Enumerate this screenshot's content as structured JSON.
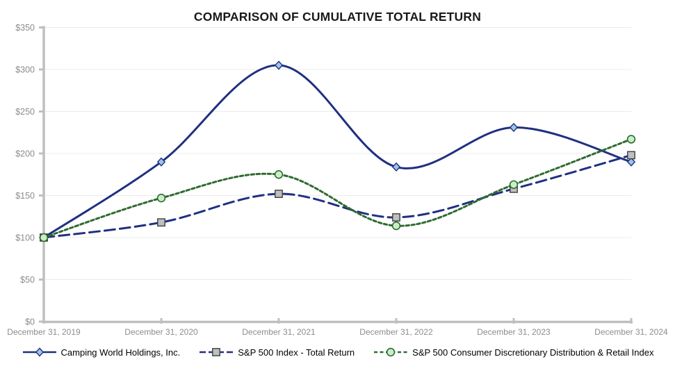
{
  "chart_data": {
    "type": "line",
    "title": "COMPARISON OF CUMULATIVE TOTAL RETURN",
    "categories": [
      "December 31, 2019",
      "December 31, 2020",
      "December 31, 2021",
      "December 31, 2022",
      "December 31, 2023",
      "December 31, 2024"
    ],
    "series": [
      {
        "name": "Camping World Holdings, Inc.",
        "values": [
          100,
          190,
          305,
          184,
          231,
          190
        ],
        "line_color": "#203081",
        "line_style": "solid",
        "marker": "diamond",
        "marker_fill": "#9DC3E6",
        "marker_stroke": "#203081"
      },
      {
        "name": "S&P 500 Index - Total Return",
        "values": [
          100,
          118,
          152,
          124,
          158,
          198
        ],
        "line_color": "#203081",
        "line_style": "long-dash",
        "marker": "square",
        "marker_fill": "#BFBFBF",
        "marker_stroke": "#3F3F3F"
      },
      {
        "name": "S&P 500 Consumer Discretionary Distribution & Retail Index",
        "values": [
          100,
          147,
          175,
          114,
          163,
          217
        ],
        "line_color": "#2E6B30",
        "line_style": "dot",
        "marker": "circle",
        "marker_fill": "#C9EFC9",
        "marker_stroke": "#2E6B30"
      }
    ],
    "y_axis": {
      "min": 0,
      "max": 350,
      "step": 50,
      "tick_prefix": "$"
    },
    "x_axis_labels_visible": true,
    "grid": true,
    "legend_position": "bottom",
    "smooth_lines": true,
    "colors": {
      "axis": "#BFBFBF",
      "tick_label": "#8C8C8C",
      "gridline": "#ECECEC",
      "title_text": "#1A1A1A",
      "legend_text": "#000000",
      "background": "#FFFFFF"
    }
  }
}
